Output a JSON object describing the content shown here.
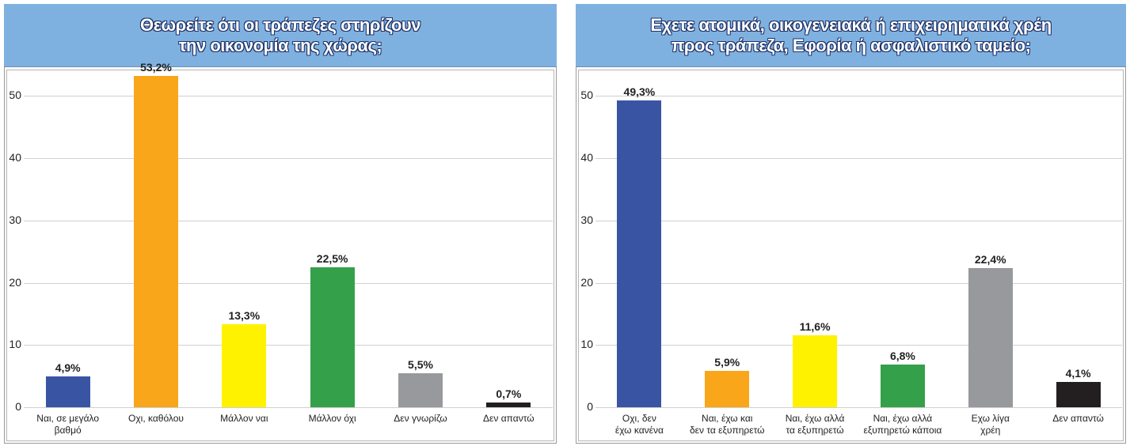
{
  "chart_data": [
    {
      "type": "bar",
      "title": "Θεωρείτε ότι οι τράπεζες στηρίζουν\nτην οικονομία της χώρας;",
      "categories": [
        "Ναι, σε μεγάλο\nβαθμό",
        "Οχι, καθόλου",
        "Μάλλον ναι",
        "Μάλλον όχι",
        "Δεν γνωρίζω",
        "Δεν απαντώ"
      ],
      "values": [
        4.9,
        53.2,
        13.3,
        22.5,
        5.5,
        0.7
      ],
      "value_labels": [
        "4,9%",
        "53,2%",
        "13,3%",
        "22,5%",
        "5,5%",
        "0,7%"
      ],
      "colors": [
        "#3a54a4",
        "#f9a61a",
        "#fff200",
        "#35a04a",
        "#97999c",
        "#231f20"
      ],
      "ylim": [
        0,
        54
      ],
      "yticks": [
        0,
        10,
        20,
        30,
        40,
        50
      ],
      "grid": true
    },
    {
      "type": "bar",
      "title": "Εχετε ατομικά, οικογενειακά ή επιχειρηματικά χρέη\nπρος τράπεζα, Εφορία ή ασφαλιστικό ταμείο;",
      "categories": [
        "Οχι, δεν\nέχω κανένα",
        "Ναι, έχω και\nδεν τα εξυπηρετώ",
        "Ναι, έχω αλλά\nτα εξυπηρετώ",
        "Ναι, έχω αλλά\nεξυπηρετώ κάποια",
        "Εχω λίγα\nχρέη",
        "Δεν απαντώ"
      ],
      "values": [
        49.3,
        5.9,
        11.6,
        6.8,
        22.4,
        4.1
      ],
      "value_labels": [
        "49,3%",
        "5,9%",
        "11,6%",
        "6,8%",
        "22,4%",
        "4,1%"
      ],
      "colors": [
        "#3a54a4",
        "#f9a61a",
        "#fff200",
        "#35a04a",
        "#97999c",
        "#231f20"
      ],
      "ylim": [
        0,
        54
      ],
      "yticks": [
        0,
        10,
        20,
        30,
        40,
        50
      ],
      "grid": true
    }
  ]
}
